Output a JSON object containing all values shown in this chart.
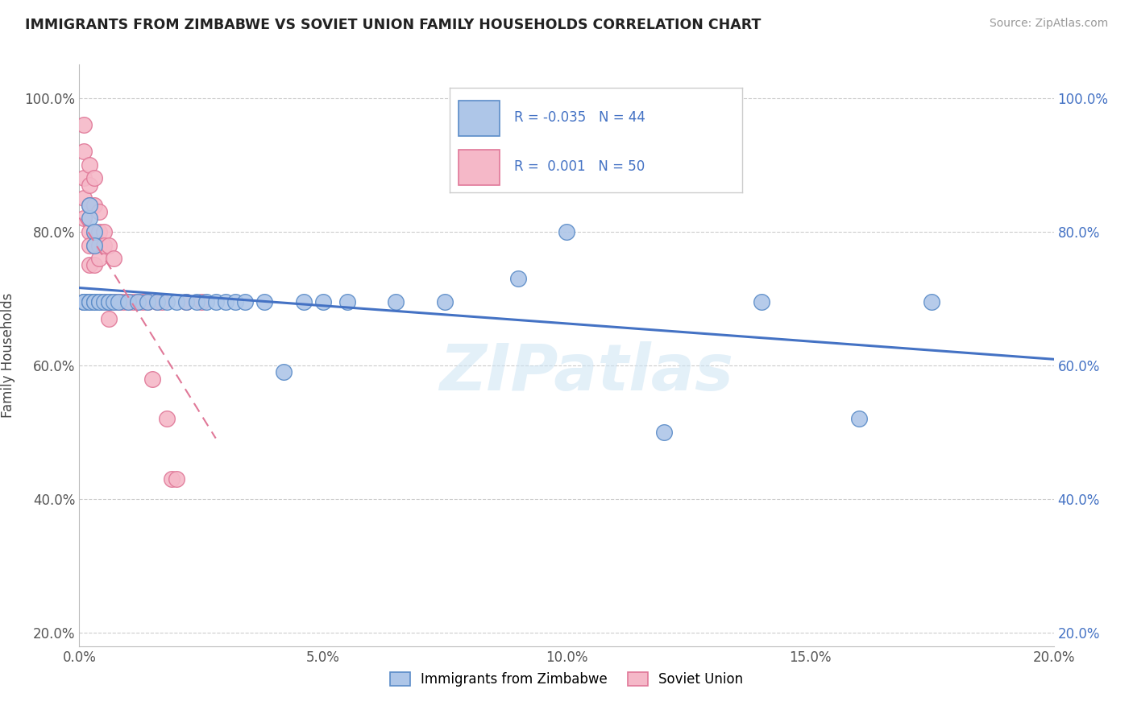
{
  "title": "IMMIGRANTS FROM ZIMBABWE VS SOVIET UNION FAMILY HOUSEHOLDS CORRELATION CHART",
  "source": "Source: ZipAtlas.com",
  "ylabel": "Family Households",
  "legend_labels": [
    "Immigrants from Zimbabwe",
    "Soviet Union"
  ],
  "zimbabwe_R": "-0.035",
  "zimbabwe_N": "44",
  "soviet_R": "0.001",
  "soviet_N": "50",
  "xmin": 0.0,
  "xmax": 0.2,
  "ymin": 0.18,
  "ymax": 1.05,
  "xtick_labels": [
    "0.0%",
    "5.0%",
    "10.0%",
    "15.0%",
    "20.0%"
  ],
  "xtick_vals": [
    0.0,
    0.05,
    0.1,
    0.15,
    0.2
  ],
  "ytick_labels": [
    "20.0%",
    "40.0%",
    "60.0%",
    "80.0%",
    "100.0%"
  ],
  "ytick_vals": [
    0.2,
    0.4,
    0.6,
    0.8,
    1.0
  ],
  "zimbabwe_color": "#aec6e8",
  "zimbabwe_edge": "#5b8cc8",
  "soviet_color": "#f5b8c8",
  "soviet_edge": "#e07898",
  "trend_blue": "#4472c4",
  "trend_pink": "#e07898",
  "watermark": "ZIPatlas",
  "zimbabwe_x": [
    0.001,
    0.001,
    0.001,
    0.002,
    0.002,
    0.002,
    0.002,
    0.003,
    0.003,
    0.003,
    0.003,
    0.004,
    0.004,
    0.005,
    0.006,
    0.006,
    0.007,
    0.008,
    0.01,
    0.012,
    0.014,
    0.016,
    0.018,
    0.02,
    0.022,
    0.024,
    0.026,
    0.028,
    0.03,
    0.032,
    0.034,
    0.038,
    0.042,
    0.046,
    0.05,
    0.055,
    0.065,
    0.075,
    0.09,
    0.1,
    0.12,
    0.14,
    0.16,
    0.175
  ],
  "zimbabwe_y": [
    0.695,
    0.695,
    0.695,
    0.82,
    0.84,
    0.695,
    0.695,
    0.695,
    0.8,
    0.78,
    0.695,
    0.695,
    0.695,
    0.695,
    0.695,
    0.695,
    0.695,
    0.695,
    0.695,
    0.695,
    0.695,
    0.695,
    0.695,
    0.695,
    0.695,
    0.695,
    0.695,
    0.695,
    0.695,
    0.695,
    0.695,
    0.695,
    0.59,
    0.695,
    0.695,
    0.695,
    0.695,
    0.695,
    0.73,
    0.8,
    0.5,
    0.695,
    0.52,
    0.695
  ],
  "soviet_x": [
    0.001,
    0.001,
    0.001,
    0.001,
    0.001,
    0.001,
    0.002,
    0.002,
    0.002,
    0.002,
    0.002,
    0.002,
    0.002,
    0.002,
    0.003,
    0.003,
    0.003,
    0.003,
    0.003,
    0.003,
    0.004,
    0.004,
    0.004,
    0.004,
    0.004,
    0.005,
    0.005,
    0.005,
    0.005,
    0.006,
    0.006,
    0.006,
    0.007,
    0.007,
    0.008,
    0.008,
    0.009,
    0.01,
    0.011,
    0.012,
    0.013,
    0.014,
    0.015,
    0.016,
    0.017,
    0.018,
    0.019,
    0.02,
    0.022,
    0.025
  ],
  "soviet_y": [
    0.96,
    0.92,
    0.88,
    0.85,
    0.82,
    0.695,
    0.9,
    0.87,
    0.84,
    0.8,
    0.78,
    0.75,
    0.695,
    0.695,
    0.88,
    0.84,
    0.8,
    0.78,
    0.75,
    0.695,
    0.83,
    0.8,
    0.78,
    0.76,
    0.695,
    0.8,
    0.78,
    0.695,
    0.695,
    0.78,
    0.695,
    0.67,
    0.76,
    0.695,
    0.695,
    0.695,
    0.695,
    0.695,
    0.695,
    0.695,
    0.695,
    0.695,
    0.58,
    0.695,
    0.695,
    0.52,
    0.43,
    0.43,
    0.695,
    0.695
  ]
}
